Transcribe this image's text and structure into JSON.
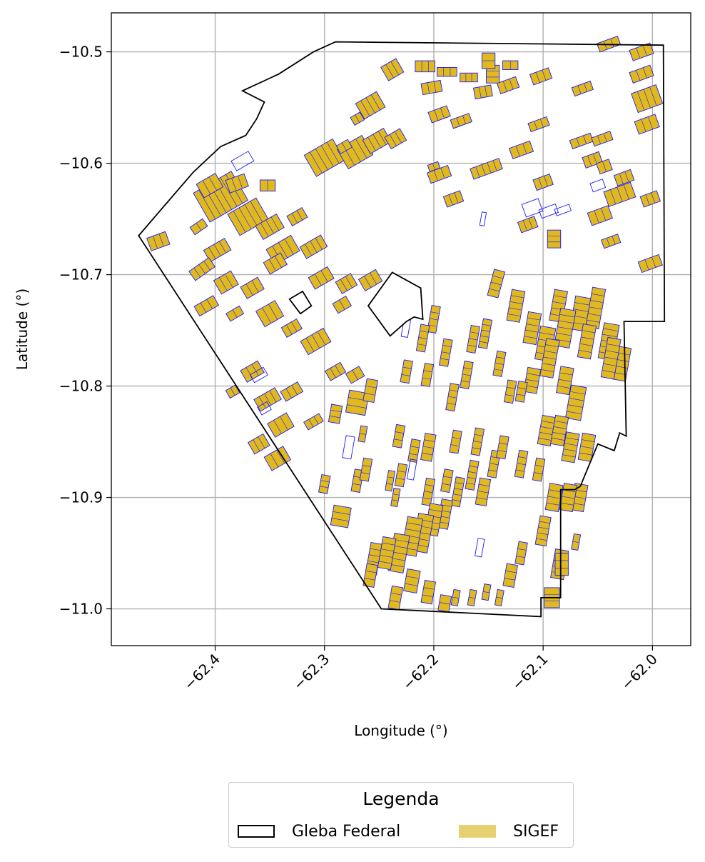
{
  "chart_data": {
    "type": "map",
    "xlabel": "Longitude (°)",
    "ylabel": "Latitude (°)",
    "xlim": [
      -62.495,
      -61.965
    ],
    "ylim": [
      -11.033,
      -10.465
    ],
    "xticks": [
      -62.4,
      -62.3,
      -62.2,
      -62.1,
      -62.0
    ],
    "xtick_labels": [
      "−62.4",
      "−62.3",
      "−62.2",
      "−62.1",
      "−62.0"
    ],
    "yticks": [
      -10.5,
      -10.6,
      -10.7,
      -10.8,
      -10.9,
      -11.0
    ],
    "ytick_labels": [
      "−10.5",
      "−10.6",
      "−10.7",
      "−10.8",
      "−10.9",
      "−11.0"
    ],
    "grid": true,
    "colors": {
      "gleba_stroke": "#000000",
      "sigef_fill": "#e0b91e",
      "sigef_edge": "#1a1aff",
      "grid": "#b0b0b0"
    },
    "gleba_outer": [
      [
        -62.29,
        -10.491
      ],
      [
        -61.99,
        -10.494
      ],
      [
        -61.989,
        -10.742
      ],
      [
        -62.026,
        -10.742
      ],
      [
        -62.024,
        -10.845
      ],
      [
        -62.03,
        -10.842
      ],
      [
        -62.035,
        -10.858
      ],
      [
        -62.05,
        -10.852
      ],
      [
        -62.066,
        -10.89
      ],
      [
        -62.071,
        -10.893
      ],
      [
        -62.084,
        -10.893
      ],
      [
        -62.084,
        -10.99
      ],
      [
        -62.102,
        -10.99
      ],
      [
        -62.102,
        -11.007
      ],
      [
        -62.248,
        -11.0
      ],
      [
        -62.47,
        -10.665
      ],
      [
        -62.42,
        -10.608
      ],
      [
        -62.395,
        -10.585
      ],
      [
        -62.372,
        -10.575
      ],
      [
        -62.362,
        -10.56
      ],
      [
        -62.355,
        -10.545
      ],
      [
        -62.375,
        -10.535
      ],
      [
        -62.342,
        -10.52
      ],
      [
        -62.31,
        -10.5
      ],
      [
        -62.29,
        -10.491
      ]
    ],
    "gleba_holes": [
      [
        [
          -62.26,
          -10.728
        ],
        [
          -62.238,
          -10.698
        ],
        [
          -62.212,
          -10.712
        ],
        [
          -62.21,
          -10.74
        ],
        [
          -62.218,
          -10.738
        ],
        [
          -62.225,
          -10.742
        ],
        [
          -62.24,
          -10.755
        ],
        [
          -62.26,
          -10.728
        ]
      ],
      [
        [
          -62.332,
          -10.722
        ],
        [
          -62.32,
          -10.715
        ],
        [
          -62.312,
          -10.728
        ],
        [
          -62.322,
          -10.735
        ],
        [
          -62.332,
          -10.722
        ]
      ]
    ],
    "sigef_parcels": [
      [
        -62.452,
        -10.67,
        0.018,
        0.012,
        -20
      ],
      [
        -62.415,
        -10.657,
        0.014,
        0.008,
        -35
      ],
      [
        -62.395,
        -10.63,
        0.04,
        0.03,
        -30
      ],
      [
        -62.37,
        -10.648,
        0.03,
        0.022,
        -30
      ],
      [
        -62.38,
        -10.618,
        0.018,
        0.012,
        -20
      ],
      [
        -62.352,
        -10.62,
        0.014,
        0.01,
        0
      ],
      [
        -62.35,
        -10.657,
        0.022,
        0.014,
        -30
      ],
      [
        -62.338,
        -10.678,
        0.026,
        0.016,
        -30
      ],
      [
        -62.31,
        -10.675,
        0.022,
        0.012,
        -30
      ],
      [
        -62.345,
        -10.69,
        0.018,
        0.012,
        -30
      ],
      [
        -62.325,
        -10.648,
        0.016,
        0.01,
        -30
      ],
      [
        -62.405,
        -10.62,
        0.02,
        0.014,
        -30
      ],
      [
        -62.398,
        -10.678,
        0.022,
        0.012,
        -30
      ],
      [
        -62.412,
        -10.695,
        0.022,
        0.01,
        -35
      ],
      [
        -62.39,
        -10.707,
        0.018,
        0.014,
        -30
      ],
      [
        -62.366,
        -10.712,
        0.018,
        0.012,
        -30
      ],
      [
        -62.35,
        -10.735,
        0.02,
        0.016,
        -30
      ],
      [
        -62.33,
        -10.748,
        0.016,
        0.01,
        -30
      ],
      [
        -62.382,
        -10.735,
        0.014,
        0.008,
        -30
      ],
      [
        -62.408,
        -10.728,
        0.02,
        0.01,
        -30
      ],
      [
        -62.366,
        -10.787,
        0.018,
        0.012,
        -30
      ],
      [
        -62.384,
        -10.805,
        0.01,
        0.008,
        -30
      ],
      [
        -62.352,
        -10.812,
        0.022,
        0.012,
        -30
      ],
      [
        -62.34,
        -10.835,
        0.02,
        0.014,
        -30
      ],
      [
        -62.33,
        -10.805,
        0.018,
        0.01,
        -30
      ],
      [
        -62.31,
        -10.832,
        0.016,
        0.008,
        -30
      ],
      [
        -62.36,
        -10.852,
        0.016,
        0.012,
        -30
      ],
      [
        -62.343,
        -10.865,
        0.02,
        0.014,
        -30
      ],
      [
        -62.308,
        -10.76,
        0.024,
        0.014,
        -30
      ],
      [
        -62.284,
        -10.727,
        0.014,
        0.01,
        -30
      ],
      [
        -62.29,
        -10.787,
        0.016,
        0.01,
        -30
      ],
      [
        -62.272,
        -10.79,
        0.014,
        0.01,
        -30
      ],
      [
        -62.303,
        -10.703,
        0.02,
        0.012,
        -30
      ],
      [
        -62.28,
        -10.708,
        0.016,
        0.012,
        -30
      ],
      [
        -62.258,
        -10.705,
        0.018,
        0.012,
        -30
      ],
      [
        -62.3,
        -10.595,
        0.03,
        0.022,
        -30
      ],
      [
        -62.272,
        -10.59,
        0.026,
        0.02,
        -30
      ],
      [
        -62.258,
        -10.548,
        0.022,
        0.016,
        -30
      ],
      [
        -62.252,
        -10.58,
        0.022,
        0.014,
        -30
      ],
      [
        -62.235,
        -10.578,
        0.016,
        0.012,
        -30
      ],
      [
        -62.27,
        -10.56,
        0.01,
        0.008,
        -30
      ],
      [
        -62.282,
        -10.585,
        0.012,
        0.008,
        -30
      ],
      [
        -62.238,
        -10.516,
        0.016,
        0.014,
        -30
      ],
      [
        -62.208,
        -10.513,
        0.018,
        0.01,
        0
      ],
      [
        -62.202,
        -10.532,
        0.018,
        0.01,
        -10
      ],
      [
        -62.188,
        -10.518,
        0.018,
        0.008,
        0
      ],
      [
        -62.168,
        -10.523,
        0.016,
        0.008,
        0
      ],
      [
        -62.155,
        -10.536,
        0.016,
        0.01,
        -10
      ],
      [
        -62.146,
        -10.52,
        0.012,
        0.016,
        0
      ],
      [
        -62.15,
        -10.508,
        0.012,
        0.014,
        0
      ],
      [
        -62.13,
        -10.512,
        0.014,
        0.008,
        0
      ],
      [
        -62.195,
        -10.556,
        0.018,
        0.01,
        -20
      ],
      [
        -62.175,
        -10.562,
        0.018,
        0.008,
        -20
      ],
      [
        -62.152,
        -10.605,
        0.028,
        0.01,
        -20
      ],
      [
        -62.2,
        -10.603,
        0.01,
        0.006,
        -20
      ],
      [
        -62.195,
        -10.61,
        0.02,
        0.01,
        -20
      ],
      [
        -62.182,
        -10.632,
        0.016,
        0.01,
        -20
      ],
      [
        -62.132,
        -10.53,
        0.018,
        0.01,
        -20
      ],
      [
        -62.12,
        -10.588,
        0.02,
        0.01,
        -20
      ],
      [
        -62.102,
        -10.522,
        0.018,
        0.01,
        -20
      ],
      [
        -62.104,
        -10.565,
        0.018,
        0.008,
        -20
      ],
      [
        -62.065,
        -10.58,
        0.02,
        0.008,
        -20
      ],
      [
        -62.055,
        -10.597,
        0.016,
        0.01,
        -20
      ],
      [
        -62.044,
        -10.603,
        0.012,
        0.01,
        -20
      ],
      [
        -62.064,
        -10.533,
        0.018,
        0.008,
        -20
      ],
      [
        -62.046,
        -10.578,
        0.018,
        0.008,
        -20
      ],
      [
        -62.026,
        -10.613,
        0.016,
        0.01,
        -20
      ],
      [
        -62.03,
        -10.628,
        0.026,
        0.014,
        -20
      ],
      [
        -62.048,
        -10.647,
        0.02,
        0.012,
        -20
      ],
      [
        -62.038,
        -10.67,
        0.016,
        0.008,
        -20
      ],
      [
        -62.01,
        -10.5,
        0.02,
        0.01,
        -20
      ],
      [
        -62.01,
        -10.52,
        0.02,
        0.01,
        -20
      ],
      [
        -62.04,
        -10.493,
        0.02,
        0.008,
        -20
      ],
      [
        -62.005,
        -10.542,
        0.024,
        0.018,
        -20
      ],
      [
        -62.005,
        -10.565,
        0.02,
        0.012,
        -20
      ],
      [
        -62.002,
        -10.632,
        0.016,
        0.01,
        -20
      ],
      [
        -62.002,
        -10.69,
        0.02,
        0.01,
        -20
      ],
      [
        -62.09,
        -10.668,
        0.012,
        0.016,
        0
      ],
      [
        -62.114,
        -10.655,
        0.016,
        0.01,
        -20
      ],
      [
        -62.1,
        -10.617,
        0.016,
        0.01,
        -20
      ],
      [
        -62.143,
        -10.708,
        0.01,
        0.024,
        15
      ],
      [
        -62.125,
        -10.728,
        0.012,
        0.028,
        10
      ],
      [
        -62.086,
        -10.728,
        0.012,
        0.028,
        10
      ],
      [
        -62.066,
        -10.735,
        0.014,
        0.03,
        10
      ],
      [
        -62.052,
        -10.73,
        0.012,
        0.036,
        10
      ],
      [
        -62.11,
        -10.748,
        0.012,
        0.028,
        10
      ],
      [
        -62.098,
        -10.762,
        0.014,
        0.03,
        10
      ],
      [
        -62.08,
        -10.748,
        0.014,
        0.034,
        10
      ],
      [
        -62.06,
        -10.76,
        0.012,
        0.03,
        10
      ],
      [
        -62.04,
        -10.76,
        0.014,
        0.032,
        10
      ],
      [
        -62.028,
        -10.78,
        0.012,
        0.03,
        10
      ],
      [
        -62.038,
        -10.775,
        0.012,
        0.036,
        10
      ],
      [
        -62.08,
        -10.795,
        0.012,
        0.024,
        10
      ],
      [
        -62.094,
        -10.775,
        0.012,
        0.034,
        10
      ],
      [
        -62.07,
        -10.815,
        0.014,
        0.03,
        10
      ],
      [
        -62.11,
        -10.795,
        0.012,
        0.022,
        10
      ],
      [
        -62.14,
        -10.78,
        0.008,
        0.022,
        10
      ],
      [
        -62.13,
        -10.805,
        0.008,
        0.02,
        10
      ],
      [
        -62.12,
        -10.805,
        0.008,
        0.018,
        10
      ],
      [
        -62.153,
        -10.753,
        0.008,
        0.026,
        10
      ],
      [
        -62.164,
        -10.758,
        0.008,
        0.024,
        10
      ],
      [
        -62.17,
        -10.79,
        0.008,
        0.024,
        10
      ],
      [
        -62.183,
        -10.81,
        0.008,
        0.024,
        10
      ],
      [
        -62.189,
        -10.77,
        0.008,
        0.024,
        10
      ],
      [
        -62.2,
        -10.74,
        0.008,
        0.024,
        10
      ],
      [
        -62.21,
        -10.757,
        0.008,
        0.024,
        10
      ],
      [
        -62.225,
        -10.787,
        0.008,
        0.02,
        10
      ],
      [
        -62.206,
        -10.79,
        0.008,
        0.02,
        10
      ],
      [
        -62.232,
        -10.845,
        0.008,
        0.02,
        10
      ],
      [
        -62.205,
        -10.855,
        0.01,
        0.024,
        10
      ],
      [
        -62.218,
        -10.858,
        0.008,
        0.02,
        10
      ],
      [
        -62.23,
        -10.88,
        0.008,
        0.02,
        10
      ],
      [
        -62.205,
        -10.895,
        0.008,
        0.024,
        10
      ],
      [
        -62.188,
        -10.885,
        0.008,
        0.02,
        10
      ],
      [
        -62.18,
        -10.85,
        0.008,
        0.02,
        10
      ],
      [
        -62.16,
        -10.85,
        0.008,
        0.024,
        10
      ],
      [
        -62.145,
        -10.87,
        0.008,
        0.024,
        10
      ],
      [
        -62.137,
        -10.855,
        0.008,
        0.02,
        10
      ],
      [
        -62.12,
        -10.87,
        0.008,
        0.024,
        10
      ],
      [
        -62.104,
        -10.875,
        0.008,
        0.02,
        10
      ],
      [
        -62.097,
        -10.84,
        0.012,
        0.026,
        10
      ],
      [
        -62.085,
        -10.84,
        0.012,
        0.026,
        10
      ],
      [
        -62.075,
        -10.855,
        0.012,
        0.026,
        10
      ],
      [
        -62.06,
        -10.855,
        0.012,
        0.024,
        10
      ],
      [
        -62.067,
        -10.9,
        0.012,
        0.024,
        10
      ],
      [
        -62.077,
        -10.9,
        0.012,
        0.024,
        10
      ],
      [
        -62.09,
        -10.9,
        0.012,
        0.024,
        10
      ],
      [
        -62.1,
        -10.93,
        0.01,
        0.026,
        10
      ],
      [
        -62.085,
        -10.96,
        0.012,
        0.026,
        10
      ],
      [
        -62.12,
        -10.95,
        0.008,
        0.02,
        10
      ],
      [
        -62.13,
        -10.97,
        0.01,
        0.02,
        10
      ],
      [
        -62.155,
        -10.895,
        0.01,
        0.024,
        10
      ],
      [
        -62.165,
        -10.88,
        0.008,
        0.026,
        10
      ],
      [
        -62.178,
        -10.895,
        0.008,
        0.026,
        10
      ],
      [
        -62.19,
        -10.915,
        0.01,
        0.026,
        10
      ],
      [
        -62.2,
        -10.92,
        0.012,
        0.028,
        10
      ],
      [
        -62.21,
        -10.932,
        0.014,
        0.034,
        10
      ],
      [
        -62.22,
        -10.935,
        0.014,
        0.034,
        10
      ],
      [
        -62.232,
        -10.95,
        0.014,
        0.034,
        10
      ],
      [
        -62.243,
        -10.95,
        0.012,
        0.028,
        10
      ],
      [
        -62.255,
        -10.955,
        0.01,
        0.028,
        10
      ],
      [
        -62.258,
        -10.97,
        0.01,
        0.02,
        10
      ],
      [
        -62.22,
        -10.975,
        0.012,
        0.02,
        10
      ],
      [
        -62.205,
        -10.985,
        0.01,
        0.02,
        10
      ],
      [
        -62.235,
        -10.99,
        0.01,
        0.02,
        10
      ],
      [
        -62.19,
        -10.995,
        0.01,
        0.014,
        10
      ],
      [
        -62.18,
        -10.99,
        0.006,
        0.014,
        10
      ],
      [
        -62.165,
        -10.99,
        0.006,
        0.014,
        10
      ],
      [
        -62.285,
        -10.917,
        0.016,
        0.018,
        10
      ],
      [
        -62.3,
        -10.888,
        0.008,
        0.016,
        10
      ],
      [
        -62.27,
        -10.885,
        0.008,
        0.02,
        10
      ],
      [
        -62.262,
        -10.875,
        0.008,
        0.02,
        10
      ],
      [
        -62.27,
        -10.815,
        0.018,
        0.02,
        10
      ],
      [
        -62.258,
        -10.804,
        0.01,
        0.02,
        10
      ],
      [
        -62.29,
        -10.825,
        0.01,
        0.016,
        10
      ],
      [
        -62.24,
        -10.885,
        0.006,
        0.018,
        10
      ],
      [
        -62.235,
        -10.9,
        0.006,
        0.016,
        10
      ],
      [
        -62.265,
        -10.843,
        0.006,
        0.014,
        10
      ],
      [
        -62.152,
        -10.985,
        0.006,
        0.014,
        10
      ],
      [
        -62.14,
        -10.99,
        0.006,
        0.014,
        10
      ],
      [
        -62.07,
        -10.94,
        0.006,
        0.014,
        10
      ],
      [
        -62.092,
        -10.99,
        0.014,
        0.018,
        0
      ],
      [
        -62.083,
        -10.96,
        0.012,
        0.02,
        0
      ]
    ],
    "blue_outline_only": [
      [
        -62.375,
        -10.598,
        0.018,
        0.01,
        -30
      ],
      [
        -62.36,
        -10.79,
        0.014,
        0.008,
        -30
      ],
      [
        -62.355,
        -10.82,
        0.01,
        0.008,
        -30
      ],
      [
        -62.278,
        -10.855,
        0.008,
        0.02,
        10
      ],
      [
        -62.22,
        -10.875,
        0.006,
        0.018,
        10
      ],
      [
        -62.11,
        -10.64,
        0.016,
        0.012,
        -20
      ],
      [
        -62.095,
        -10.643,
        0.016,
        0.008,
        -20
      ],
      [
        -62.082,
        -10.642,
        0.014,
        0.006,
        -20
      ],
      [
        -62.225,
        -10.745,
        0.006,
        0.022,
        10
      ],
      [
        -62.158,
        -10.945,
        0.006,
        0.016,
        10
      ],
      [
        -62.155,
        -10.65,
        0.004,
        0.012,
        10
      ],
      [
        -62.05,
        -10.62,
        0.012,
        0.008,
        -20
      ]
    ]
  },
  "legend": {
    "title": "Legenda",
    "entries": [
      {
        "label": "Gleba Federal",
        "style": "outline",
        "color": "#000000"
      },
      {
        "label": "SIGEF",
        "style": "fill",
        "color": "#e6d070"
      }
    ]
  }
}
